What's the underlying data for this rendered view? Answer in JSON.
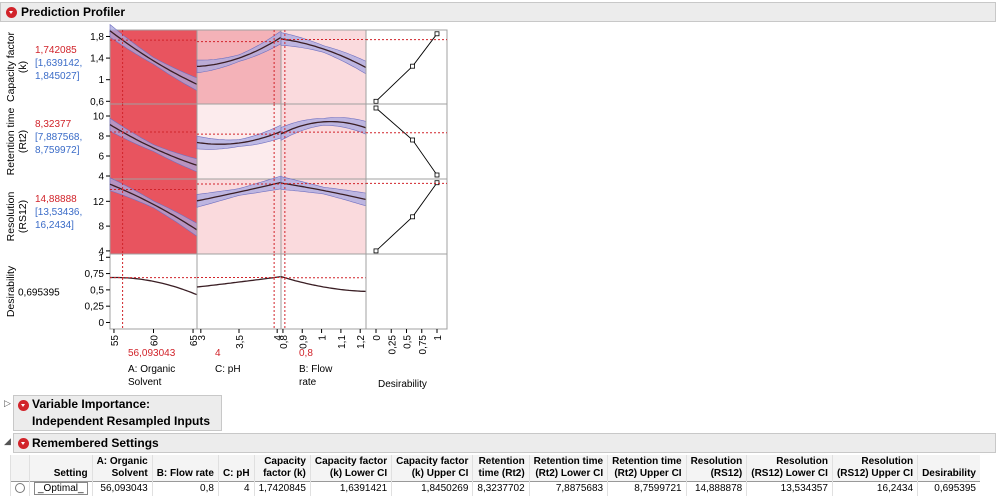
{
  "profiler": {
    "title": "Prediction Profiler",
    "responses": [
      {
        "label": [
          "Capacity factor",
          "(k)"
        ],
        "value": "1,742085",
        "ci": [
          "[1,639142,",
          "1,845027]"
        ],
        "ticks": [
          {
            "v": 0.6,
            "l": "0,6"
          },
          {
            "v": 1.0,
            "l": "1"
          },
          {
            "v": 1.4,
            "l": "1,4"
          },
          {
            "v": 1.8,
            "l": "1,8"
          }
        ],
        "ymin": 0.55,
        "ymax": 1.92
      },
      {
        "label": [
          "Retention time",
          "(Rt2)"
        ],
        "value": "8,32377",
        "ci": [
          "[7,887568,",
          "8,759972]"
        ],
        "ticks": [
          {
            "v": 4,
            "l": "4"
          },
          {
            "v": 6,
            "l": "6"
          },
          {
            "v": 8,
            "l": "8"
          },
          {
            "v": 10,
            "l": "10"
          }
        ],
        "ymin": 3.7,
        "ymax": 11.2
      },
      {
        "label": [
          "Resolution",
          "(RS12)"
        ],
        "value": "14,88888",
        "ci": [
          "[13,53436,",
          "16,2434]"
        ],
        "ticks": [
          {
            "v": 4,
            "l": "4"
          },
          {
            "v": 8,
            "l": "8"
          },
          {
            "v": 12,
            "l": "12"
          }
        ],
        "ymin": 3.5,
        "ymax": 15.6
      },
      {
        "label": [
          "Desirability"
        ],
        "value": "0,695395",
        "ci": [],
        "ticks": [
          {
            "v": 0,
            "l": "0"
          },
          {
            "v": 0.25,
            "l": "0,25"
          },
          {
            "v": 0.5,
            "l": "0,5"
          },
          {
            "v": 0.75,
            "l": "0,75"
          },
          {
            "v": 1,
            "l": "1"
          }
        ],
        "ymin": -0.1,
        "ymax": 1.05
      }
    ],
    "factors": [
      {
        "name": [
          "A: Organic",
          "Solvent"
        ],
        "current": "56,093043",
        "cur": 56.093,
        "min": 54.5,
        "max": 65.5,
        "ticks": [
          {
            "v": 55,
            "l": "55"
          },
          {
            "v": 60,
            "l": "60"
          },
          {
            "v": 65,
            "l": "65"
          }
        ]
      },
      {
        "name": [
          "C: pH"
        ],
        "current": "4",
        "cur": 3.96,
        "min": 2.95,
        "max": 4.05,
        "ticks": [
          {
            "v": 3,
            "l": "3"
          },
          {
            "v": 3.5,
            "l": "3,5"
          },
          {
            "v": 4,
            "l": "4"
          }
        ]
      },
      {
        "name": [
          "B: Flow",
          "rate"
        ],
        "current": "0,8",
        "cur": 0.81,
        "min": 0.79,
        "max": 1.23,
        "ticks": [
          {
            "v": 0.8,
            "l": "0,8"
          },
          {
            "v": 0.9,
            "l": "0,9"
          },
          {
            "v": 1.0,
            "l": "1"
          },
          {
            "v": 1.1,
            "l": "1,1"
          },
          {
            "v": 1.2,
            "l": "1,2"
          }
        ]
      }
    ],
    "desirability_axis": {
      "label": "Desirability",
      "ticks": [
        {
          "v": 0,
          "l": "0"
        },
        {
          "v": 0.25,
          "l": "0,25"
        },
        {
          "v": 0.5,
          "l": "0,5"
        },
        {
          "v": 0.75,
          "l": "0,75"
        },
        {
          "v": 1,
          "l": "1"
        }
      ]
    },
    "colors": {
      "cell_strong": "#e8545f",
      "cell_mid": "#f4b2b8",
      "cell_light": "#fadadd",
      "cell_pale": "#fcebed",
      "curve": "#3a1e24",
      "band": "#a8a8e0",
      "ref": "#d1232a",
      "value_red": "#d1232a",
      "ci_blue": "#3b6cc8"
    }
  },
  "chart_data": {
    "type": "line",
    "title": "Prediction Profiler",
    "series": [
      {
        "name": "Capacity factor (k) vs A: Organic Solvent",
        "x": [
          55,
          60,
          65
        ],
        "y": [
          1.85,
          1.35,
          0.95
        ]
      },
      {
        "name": "Capacity factor (k) vs C: pH",
        "x": [
          3,
          3.5,
          4
        ],
        "y": [
          1.25,
          1.4,
          1.74
        ]
      },
      {
        "name": "Capacity factor (k) vs B: Flow rate",
        "x": [
          0.8,
          1.0,
          1.2
        ],
        "y": [
          1.75,
          1.58,
          1.28
        ]
      },
      {
        "name": "Retention time (Rt2) vs A: Organic Solvent",
        "x": [
          55,
          60,
          65
        ],
        "y": [
          8.9,
          6.8,
          5.2
        ]
      },
      {
        "name": "Retention time (Rt2) vs C: pH",
        "x": [
          3,
          3.5,
          4
        ],
        "y": [
          7.3,
          7.3,
          8.3
        ]
      },
      {
        "name": "Retention time (Rt2) vs B: Flow rate",
        "x": [
          0.8,
          1.0,
          1.2
        ],
        "y": [
          8.3,
          9.4,
          9.0
        ]
      },
      {
        "name": "Resolution (RS12) vs A: Organic Solvent",
        "x": [
          55,
          60,
          65
        ],
        "y": [
          14.5,
          11.5,
          7.8
        ]
      },
      {
        "name": "Resolution (RS12) vs C: pH",
        "x": [
          3,
          3.5,
          4
        ],
        "y": [
          12.2,
          13.5,
          14.9
        ]
      },
      {
        "name": "Resolution (RS12) vs B: Flow rate",
        "x": [
          0.8,
          1.0,
          1.2
        ],
        "y": [
          14.9,
          13.8,
          12.5
        ]
      },
      {
        "name": "Desirability vs A: Organic Solvent",
        "x": [
          55,
          60,
          65
        ],
        "y": [
          0.69,
          0.63,
          0.45
        ]
      },
      {
        "name": "Desirability vs C: pH",
        "x": [
          3,
          3.5,
          4
        ],
        "y": [
          0.55,
          0.62,
          0.695
        ]
      },
      {
        "name": "Desirability vs B: Flow rate",
        "x": [
          0.8,
          1.0,
          1.2
        ],
        "y": [
          0.695,
          0.55,
          0.48
        ]
      }
    ],
    "desirability_functions": [
      {
        "response": "Capacity factor (k)",
        "x": [
          0.0,
          0.6,
          1.0
        ],
        "y": [
          0.6,
          1.25,
          1.85
        ]
      },
      {
        "response": "Retention time (Rt2)",
        "x": [
          0.0,
          0.6,
          1.0
        ],
        "y": [
          10.8,
          7.6,
          4.1
        ]
      },
      {
        "response": "Resolution (RS12)",
        "x": [
          0.0,
          0.6,
          1.0
        ],
        "y": [
          4.0,
          9.5,
          15.0
        ]
      }
    ]
  },
  "variable_importance": {
    "title_line1": "Variable Importance:",
    "title_line2": "Independent Resampled Inputs"
  },
  "remembered": {
    "title": "Remembered Settings",
    "headers": [
      [
        "Setting"
      ],
      [
        "A: Organic",
        "Solvent"
      ],
      [
        "B: Flow rate"
      ],
      [
        "C: pH"
      ],
      [
        "Capacity",
        "factor (k)"
      ],
      [
        "Capacity factor",
        "(k) Lower CI"
      ],
      [
        "Capacity factor",
        "(k) Upper CI"
      ],
      [
        "Retention",
        "time (Rt2)"
      ],
      [
        "Retention time",
        "(Rt2) Lower CI"
      ],
      [
        "Retention time",
        "(Rt2) Upper CI"
      ],
      [
        "Resolution",
        "(RS12)"
      ],
      [
        "Resolution",
        "(RS12) Lower CI"
      ],
      [
        "Resolution",
        "(RS12) Upper CI"
      ],
      [
        "Desirability"
      ]
    ],
    "row": [
      "_Optimal_",
      "56,093043",
      "0,8",
      "4",
      "1,7420845",
      "1,6391421",
      "1,8450269",
      "8,3237702",
      "7,8875683",
      "8,7599721",
      "14,888878",
      "13,534357",
      "16,2434",
      "0,695395"
    ]
  }
}
